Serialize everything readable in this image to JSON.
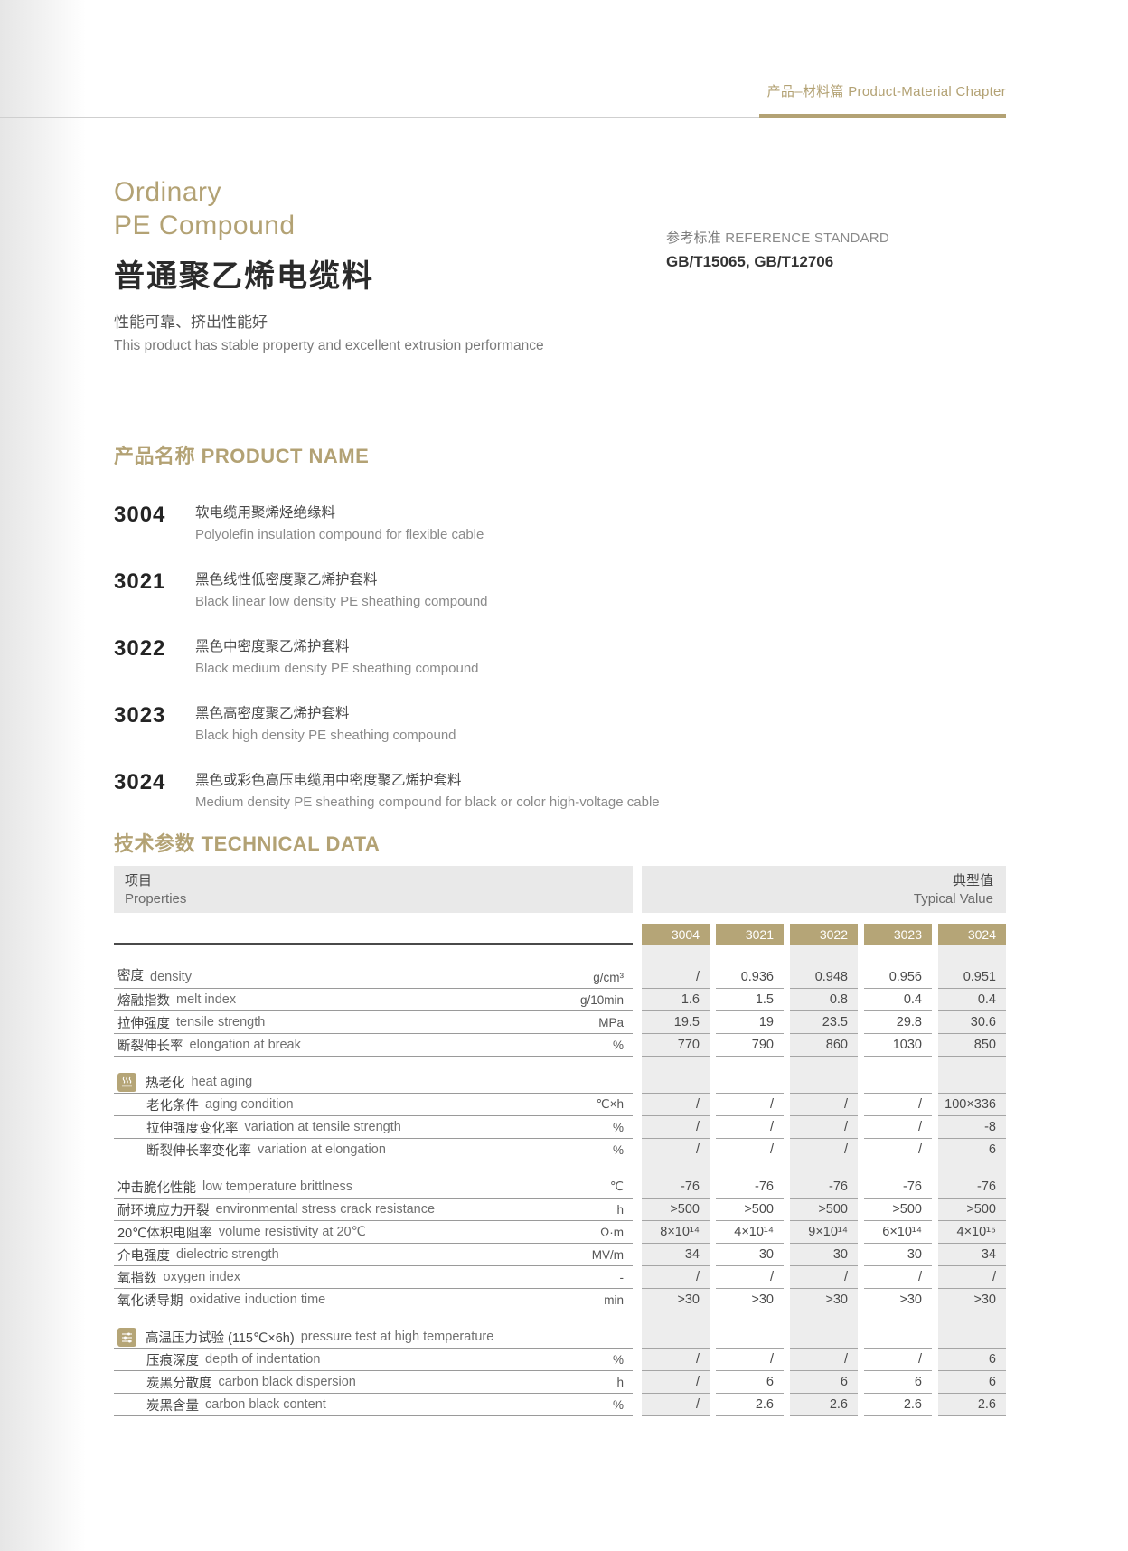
{
  "header": {
    "chapter_zh": "产品–材料篇",
    "chapter_en": "Product-Material Chapter"
  },
  "title": {
    "en_line1": "Ordinary",
    "en_line2": "PE Compound",
    "zh": "普通聚乙烯电缆料"
  },
  "reference": {
    "label_zh": "参考标准",
    "label_en": "REFERENCE STANDARD",
    "standards": "GB/T15065, GB/T12706"
  },
  "tagline": {
    "zh": "性能可靠、挤出性能好",
    "en": "This product has stable property and excellent extrusion performance"
  },
  "products": {
    "heading_zh": "产品名称",
    "heading_en": "PRODUCT NAME",
    "items": [
      {
        "code": "3004",
        "zh": "软电缆用聚烯烃绝缘料",
        "en": "Polyolefin insulation compound for flexible cable"
      },
      {
        "code": "3021",
        "zh": "黑色线性低密度聚乙烯护套料",
        "en": "Black linear low density PE sheathing compound"
      },
      {
        "code": "3022",
        "zh": "黑色中密度聚乙烯护套料",
        "en": "Black medium density PE sheathing compound"
      },
      {
        "code": "3023",
        "zh": "黑色高密度聚乙烯护套料",
        "en": "Black high density PE sheathing compound"
      },
      {
        "code": "3024",
        "zh": "黑色或彩色高压电缆用中密度聚乙烯护套料",
        "en": "Medium density PE sheathing compound for black or color high-voltage cable"
      }
    ]
  },
  "table": {
    "heading_zh": "技术参数",
    "heading_en": "TECHNICAL DATA",
    "properties_header": {
      "zh": "项目",
      "en": "Properties"
    },
    "typical_header": {
      "zh": "典型值",
      "en": "Typical Value"
    },
    "columns": [
      "3004",
      "3021",
      "3022",
      "3023",
      "3024"
    ],
    "rows": [
      {
        "type": "data",
        "first": true,
        "zh": "密度",
        "en": "density",
        "unit": "g/cm³",
        "values": [
          "/",
          "0.936",
          "0.948",
          "0.956",
          "0.951"
        ]
      },
      {
        "type": "data",
        "zh": "熔融指数",
        "en": "melt index",
        "unit": "g/10min",
        "values": [
          "1.6",
          "1.5",
          "0.8",
          "0.4",
          "0.4"
        ]
      },
      {
        "type": "data",
        "zh": "拉伸强度",
        "en": "tensile strength",
        "unit": "MPa",
        "values": [
          "19.5",
          "19",
          "23.5",
          "29.8",
          "30.6"
        ]
      },
      {
        "type": "data",
        "zh": "断裂伸长率",
        "en": "elongation at break",
        "unit": "%",
        "values": [
          "770",
          "790",
          "860",
          "1030",
          "850"
        ]
      },
      {
        "type": "section",
        "gap": true,
        "icon": "heat-icon",
        "zh": "热老化",
        "en": "heat aging"
      },
      {
        "type": "data",
        "indent": true,
        "zh": "老化条件",
        "en": "aging condition",
        "unit": "℃×h",
        "values": [
          "/",
          "/",
          "/",
          "/",
          "100×336"
        ]
      },
      {
        "type": "data",
        "indent": true,
        "zh": "拉伸强度变化率",
        "en": "variation at tensile strength",
        "unit": "%",
        "values": [
          "/",
          "/",
          "/",
          "/",
          "-8"
        ]
      },
      {
        "type": "data",
        "indent": true,
        "zh": "断裂伸长率变化率",
        "en": "variation at elongation",
        "unit": "%",
        "values": [
          "/",
          "/",
          "/",
          "/",
          "6"
        ]
      },
      {
        "type": "data",
        "gap": true,
        "zh": "冲击脆化性能",
        "en": "low temperature brittlness",
        "unit": "℃",
        "values": [
          "-76",
          "-76",
          "-76",
          "-76",
          "-76"
        ]
      },
      {
        "type": "data",
        "zh": "耐环境应力开裂",
        "en": "environmental stress crack resistance",
        "unit": "h",
        "values": [
          ">500",
          ">500",
          ">500",
          ">500",
          ">500"
        ]
      },
      {
        "type": "data",
        "zh": "20℃体积电阻率",
        "en": "volume resistivity at 20℃",
        "unit": "Ω·m",
        "values": [
          "8×10¹⁴",
          "4×10¹⁴",
          "9×10¹⁴",
          "6×10¹⁴",
          "4×10¹⁵"
        ]
      },
      {
        "type": "data",
        "zh": "介电强度",
        "en": "dielectric strength",
        "unit": "MV/m",
        "values": [
          "34",
          "30",
          "30",
          "30",
          "34"
        ]
      },
      {
        "type": "data",
        "zh": "氧指数",
        "en": "oxygen index",
        "unit": "-",
        "values": [
          "/",
          "/",
          "/",
          "/",
          "/"
        ]
      },
      {
        "type": "data",
        "zh": "氧化诱导期",
        "en": "oxidative induction time",
        "unit": "min",
        "values": [
          ">30",
          ">30",
          ">30",
          ">30",
          ">30"
        ]
      },
      {
        "type": "section",
        "gap": true,
        "icon": "pressure-icon",
        "zh": "高温压力试验 (115℃×6h)",
        "en": "pressure test at high temperature"
      },
      {
        "type": "data",
        "indent": true,
        "zh": "压痕深度",
        "en": "depth of indentation",
        "unit": "%",
        "values": [
          "/",
          "/",
          "/",
          "/",
          "6"
        ]
      },
      {
        "type": "data",
        "indent": true,
        "zh": "炭黑分散度",
        "en": "carbon black dispersion",
        "unit": "h",
        "values": [
          "/",
          "6",
          "6",
          "6",
          "6"
        ]
      },
      {
        "type": "data",
        "indent": true,
        "zh": "炭黑含量",
        "en": "carbon black content",
        "unit": "%",
        "values": [
          "/",
          "2.6",
          "2.6",
          "2.6",
          "2.6"
        ]
      }
    ]
  },
  "colors": {
    "accent": "#b3a274",
    "chip": "#b5a577",
    "header_bg": "#e9e9e9",
    "stripe": "#ededed"
  }
}
